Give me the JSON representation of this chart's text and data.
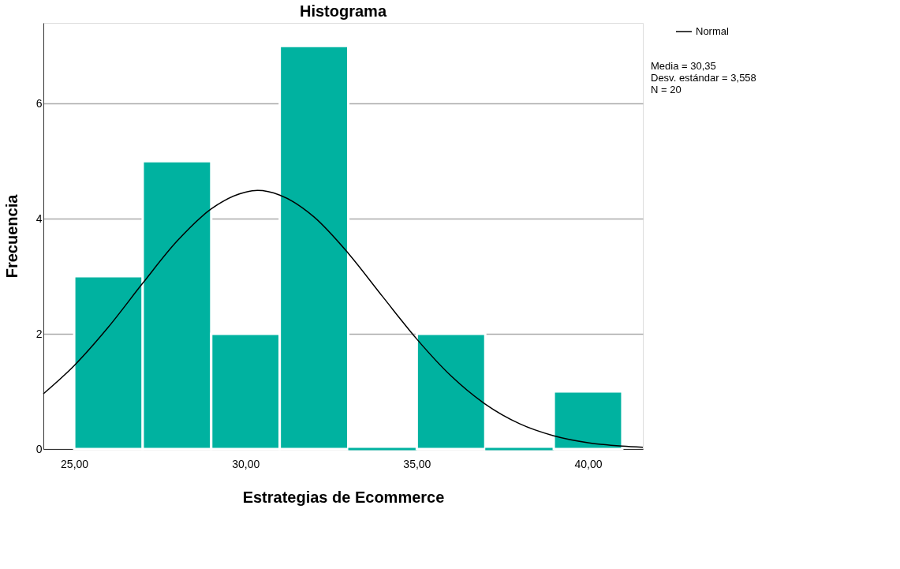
{
  "chart_data": {
    "type": "histogram",
    "title": "Histograma",
    "xlabel": "Estrategias de Ecommerce",
    "ylabel": "Frecuencia",
    "bins": [
      25,
      27,
      29,
      31,
      33,
      35,
      37,
      39,
      41
    ],
    "values": [
      3,
      5,
      2,
      7,
      0,
      2,
      0,
      1
    ],
    "color": "#00b2a0",
    "series": [
      {
        "name": "Normal",
        "type": "line",
        "color": "#000000",
        "x": [
          24.1,
          25,
          26,
          27,
          28,
          29,
          30,
          30.35,
          31,
          32,
          33,
          34,
          35,
          36,
          37,
          38,
          39,
          40,
          41,
          41.6
        ],
        "values": [
          0.96,
          1.45,
          2.12,
          2.88,
          3.61,
          4.17,
          4.46,
          4.49,
          4.41,
          4.03,
          3.4,
          2.65,
          1.91,
          1.27,
          0.78,
          0.44,
          0.23,
          0.11,
          0.05,
          0.03
        ]
      }
    ],
    "xlim": [
      24.1,
      41.6
    ],
    "xticks": [
      {
        "value": 25,
        "label": "25,00"
      },
      {
        "value": 30,
        "label": "30,00"
      },
      {
        "value": 35,
        "label": "35,00"
      },
      {
        "value": 40,
        "label": "40,00"
      }
    ],
    "ylim": [
      0,
      7.4
    ],
    "yticks": [
      0,
      2,
      4,
      6
    ],
    "grid": "y",
    "legend": "top right",
    "annotations": [
      "Media = 30,35",
      "Desv. estándar = 3,558",
      "N = 20"
    ]
  }
}
